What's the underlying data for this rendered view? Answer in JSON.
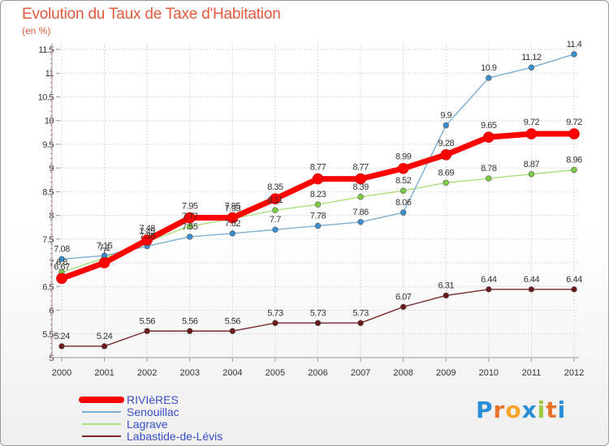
{
  "header": {
    "title": "Evolution du Taux de Taxe d'Habitation",
    "subtitle": "(en %)"
  },
  "logo": {
    "text": "Proxiti",
    "letters": [
      "P",
      "r",
      "o",
      "x",
      "i",
      "t",
      "i"
    ],
    "colors": [
      "#2a8fd8",
      "#e8732a",
      "#f2a72c",
      "#2a8fd8",
      "#9bcb3b",
      "#e8732a",
      "#2a8fd8"
    ]
  },
  "chart_data": {
    "type": "line",
    "title": "Evolution du Taux de Taxe d'Habitation",
    "ylabel": "(en %)",
    "xlabel": "",
    "x": [
      "2000",
      "2001",
      "2002",
      "2003",
      "2004",
      "2005",
      "2006",
      "2007",
      "2008",
      "2009",
      "2010",
      "2011",
      "2012"
    ],
    "ylim": [
      5,
      11.5
    ],
    "yticks": [
      "5",
      "5.5",
      "6",
      "6.5",
      "7",
      "7.5",
      "8",
      "8.5",
      "9",
      "9.5",
      "10",
      "10.5",
      "11",
      "11.5"
    ],
    "grid": true,
    "legend_position": "bottom-left",
    "series": [
      {
        "name": "RIVIèRES",
        "color": "#ff0000",
        "style": "thick",
        "values": [
          6.67,
          7.0,
          7.48,
          7.95,
          7.95,
          8.35,
          8.77,
          8.77,
          8.99,
          9.28,
          9.65,
          9.72,
          9.72
        ],
        "labels": [
          "6.67",
          "7",
          "7.48",
          "7.95",
          "7.95",
          "8.35",
          "8.77",
          "8.77",
          "8.99",
          "9.28",
          "9.65",
          "9.72",
          "9.72"
        ]
      },
      {
        "name": "Senouillac",
        "color": "#7aaed4",
        "marker": "#3a8fd0",
        "style": "thin",
        "values": [
          7.08,
          7.15,
          7.35,
          7.55,
          7.62,
          7.7,
          7.78,
          7.86,
          8.06,
          9.9,
          10.9,
          11.12,
          11.4
        ],
        "labels": [
          "7.08",
          "7.15",
          "7.35",
          "7.55",
          "7.62",
          "7.7",
          "7.78",
          "7.86",
          "8.06",
          "9.9",
          "10.9",
          "11.12",
          "11.4"
        ]
      },
      {
        "name": "Lagrave",
        "color": "#a9e07a",
        "marker": "#7ccc44",
        "style": "thin",
        "values": [
          6.8,
          7.1,
          7.45,
          7.77,
          7.93,
          8.11,
          8.23,
          8.39,
          8.52,
          8.69,
          8.78,
          8.87,
          8.96
        ],
        "labels": [
          "6.8",
          "7.1",
          "7.45",
          "7.77",
          "7.93",
          "8.11",
          "8.23",
          "8.39",
          "8.52",
          "8.69",
          "8.78",
          "8.87",
          "8.96"
        ]
      },
      {
        "name": "Labastide-de-Lévis",
        "color": "#7a2a2a",
        "marker": "#6a1c1c",
        "style": "thin",
        "values": [
          5.24,
          5.24,
          5.56,
          5.56,
          5.56,
          5.73,
          5.73,
          5.73,
          6.07,
          6.31,
          6.44,
          6.44,
          6.44
        ],
        "labels": [
          "5.24",
          "5.24",
          "5.56",
          "5.56",
          "5.56",
          "5.73",
          "5.73",
          "5.73",
          "6.07",
          "6.31",
          "6.44",
          "6.44",
          "6.44"
        ]
      }
    ]
  }
}
